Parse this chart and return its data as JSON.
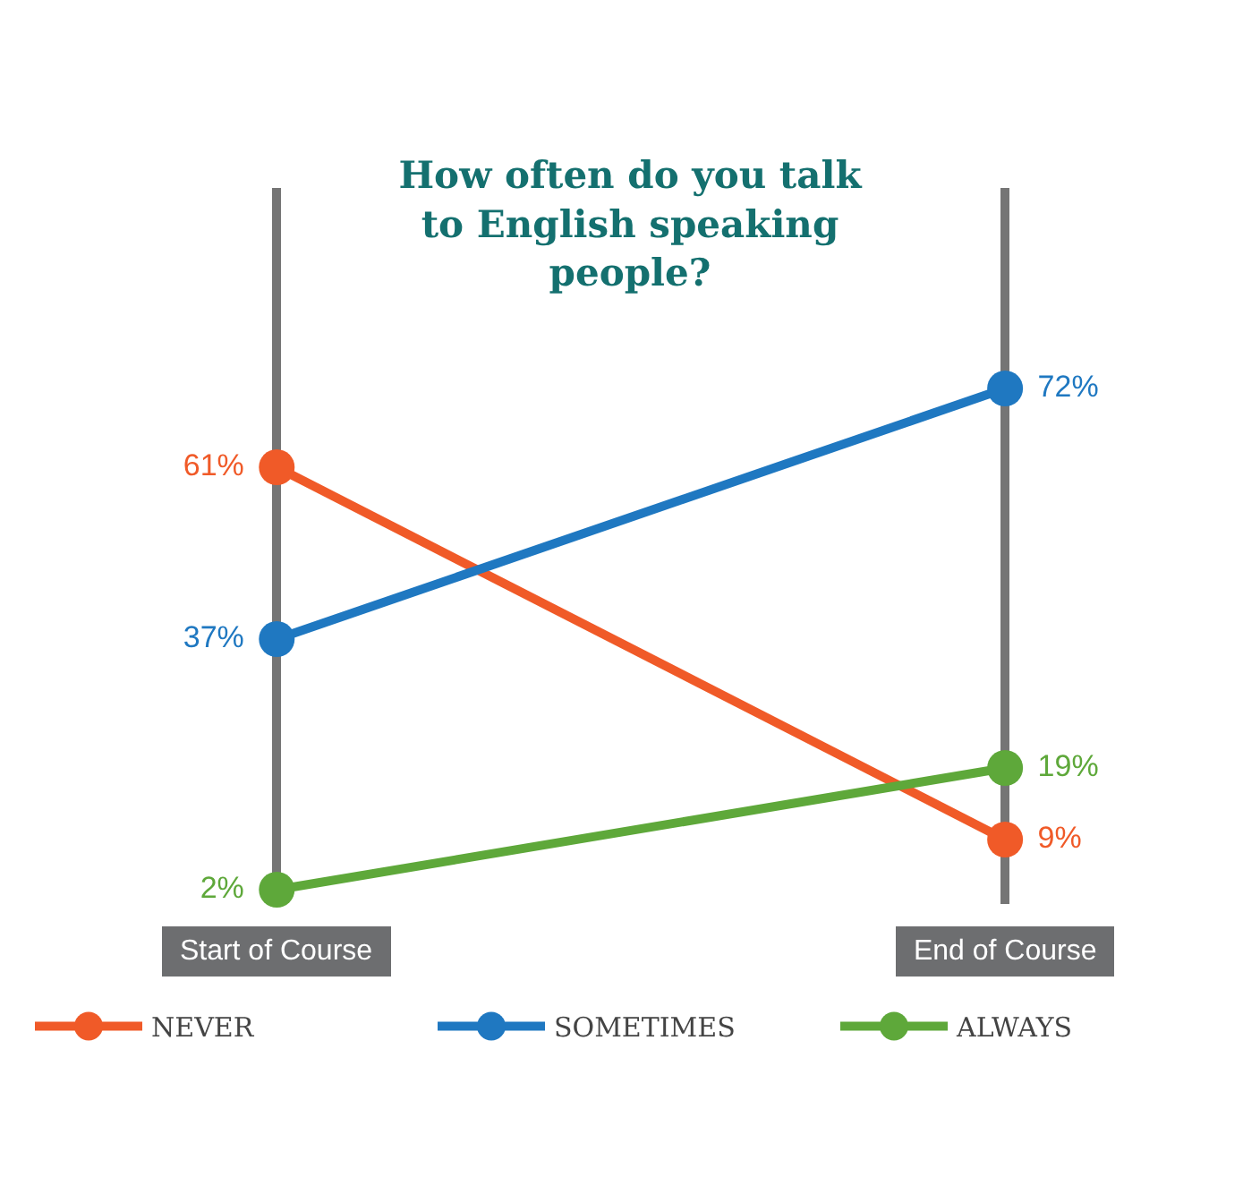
{
  "chart_data": {
    "type": "line",
    "title": "How often do you talk to English speaking people?",
    "categories": [
      "Start of Course",
      "End of Course"
    ],
    "series": [
      {
        "name": "NEVER",
        "color": "#f05a28",
        "values": [
          61,
          9
        ],
        "value_labels": [
          "61%",
          "9%"
        ]
      },
      {
        "name": "SOMETIMES",
        "color": "#1f78c1",
        "values": [
          37,
          72
        ],
        "value_labels": [
          "37%",
          "72%"
        ]
      },
      {
        "name": "ALWAYS",
        "color": "#5ea83a",
        "values": [
          2,
          19
        ],
        "value_labels": [
          "2%",
          "19%"
        ]
      }
    ],
    "ylim": [
      0,
      100
    ],
    "tick_labels": "x",
    "grid": "x",
    "legend": "bottom",
    "marker": "circle",
    "line_style": "solid"
  }
}
